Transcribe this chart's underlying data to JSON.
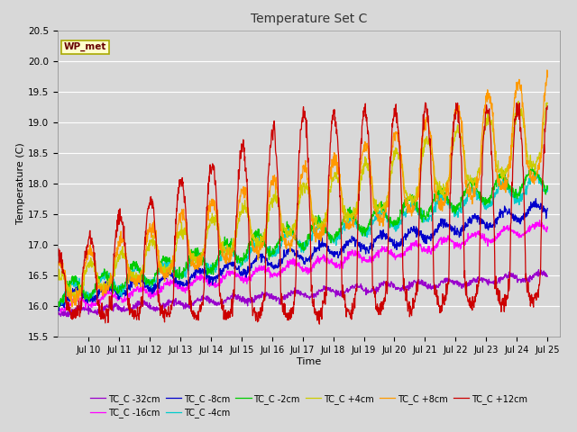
{
  "title": "Temperature Set C",
  "xlabel": "Time",
  "ylabel": "Temperature (C)",
  "ylim": [
    15.5,
    20.5
  ],
  "annotation": "WP_met",
  "fig_bg_color": "#d8d8d8",
  "plot_bg_color": "#d8d8d8",
  "grid_color": "#ffffff",
  "series": [
    {
      "label": "TC_C -32cm",
      "color": "#9900cc"
    },
    {
      "label": "TC_C -16cm",
      "color": "#ff00ff"
    },
    {
      "label": "TC_C -8cm",
      "color": "#0000cc"
    },
    {
      "label": "TC_C -4cm",
      "color": "#00cccc"
    },
    {
      "label": "TC_C -2cm",
      "color": "#00cc00"
    },
    {
      "label": "TC_C +4cm",
      "color": "#cccc00"
    },
    {
      "label": "TC_C +8cm",
      "color": "#ff9900"
    },
    {
      "label": "TC_C +12cm",
      "color": "#cc0000"
    }
  ],
  "tick_days": [
    10,
    11,
    12,
    13,
    14,
    15,
    16,
    17,
    18,
    19,
    20,
    21,
    22,
    23,
    24,
    25
  ]
}
